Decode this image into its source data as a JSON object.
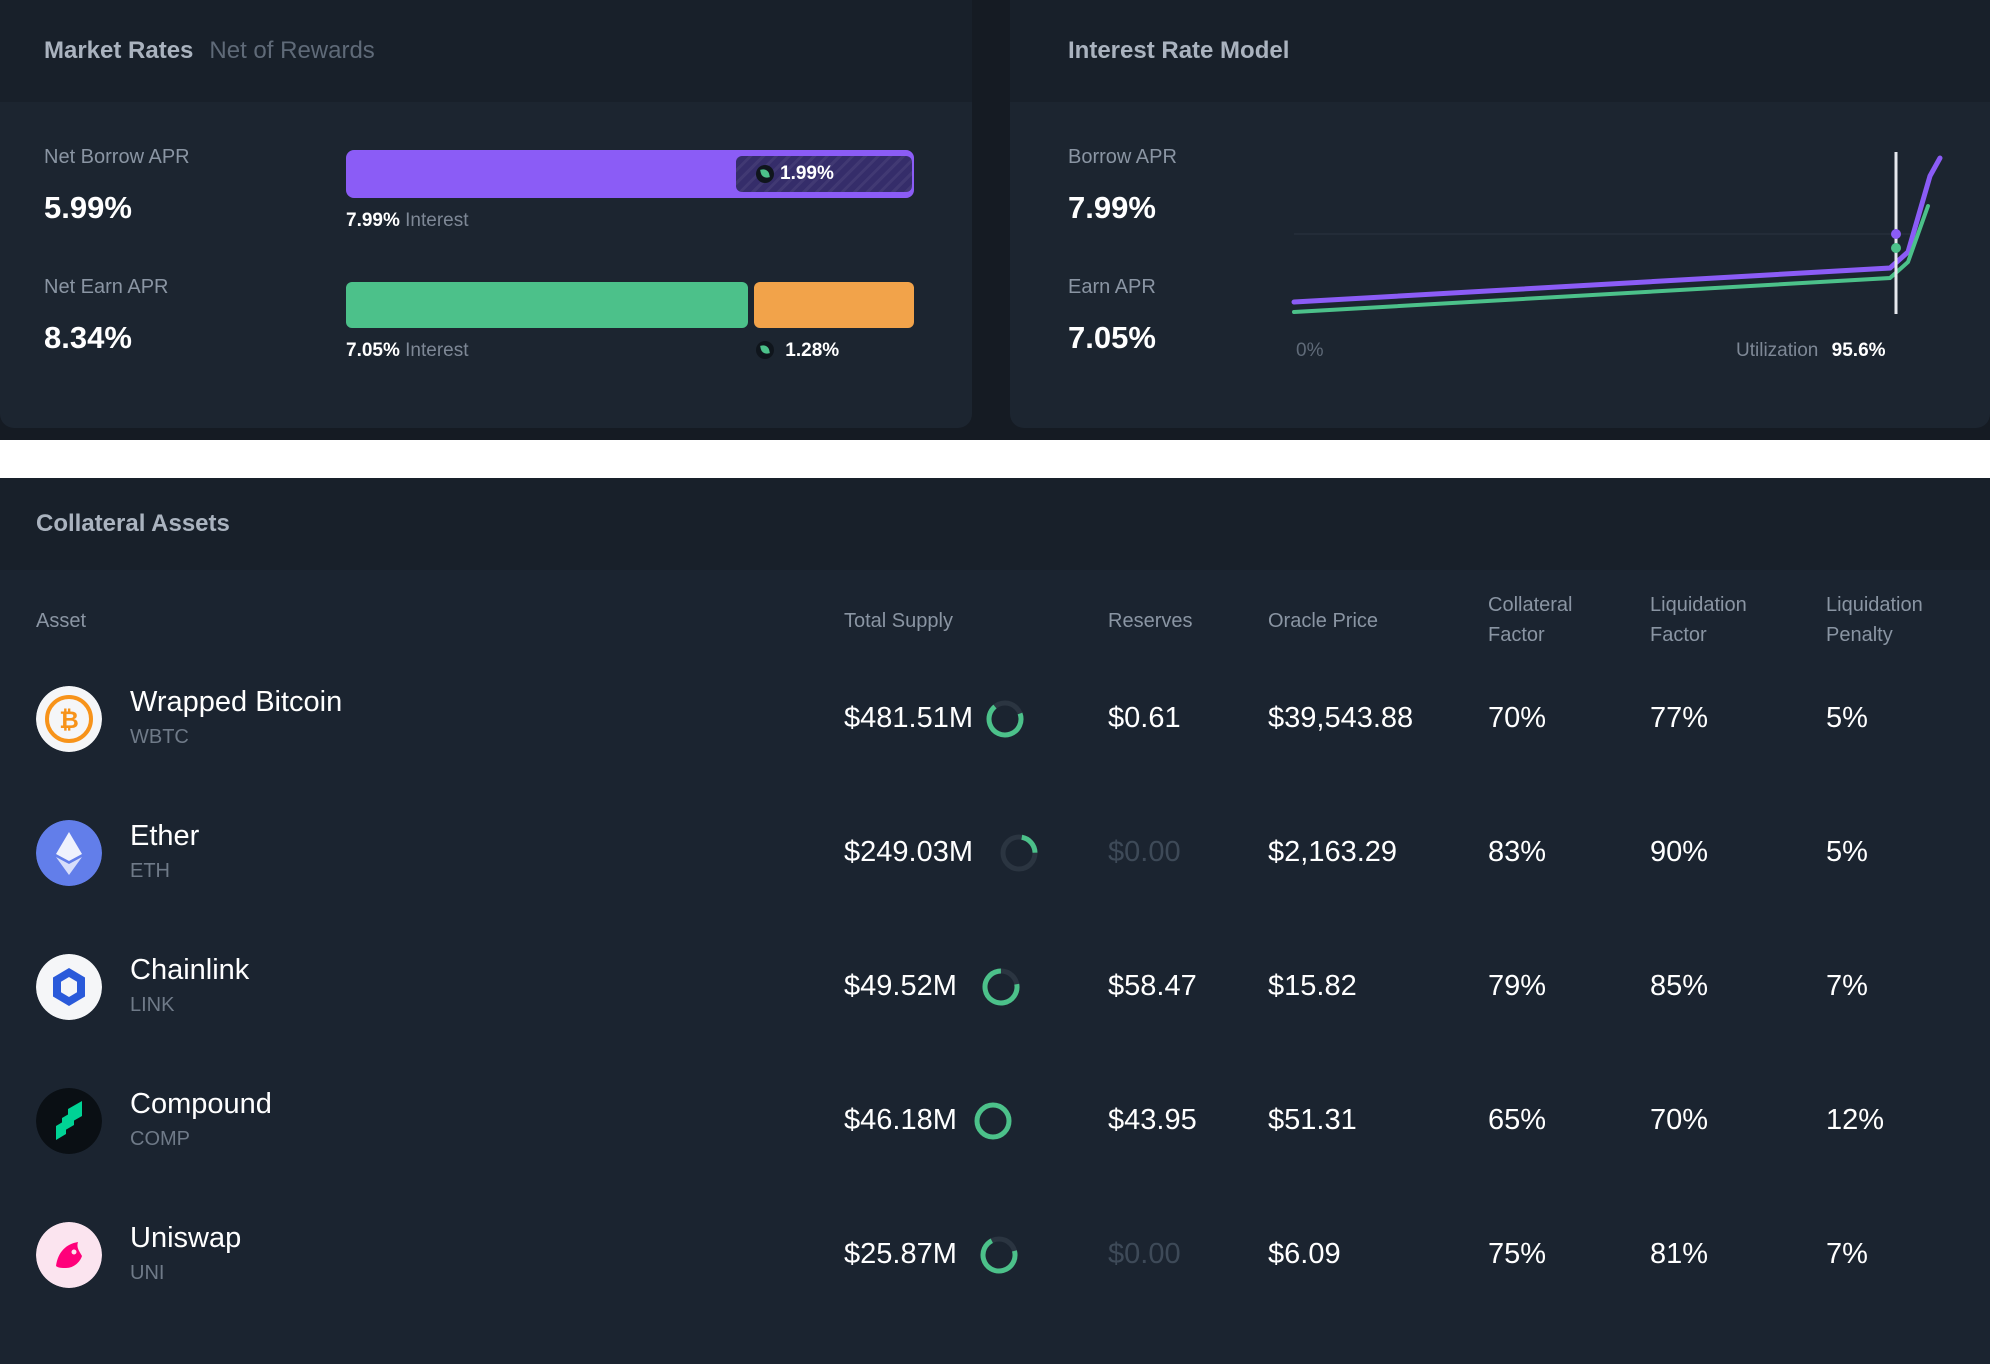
{
  "colors": {
    "purple": "#8b5cf6",
    "green": "#4cc18a",
    "orange": "#f2a34a",
    "background": "#1c2530"
  },
  "market_rates": {
    "title": "Market Rates",
    "subtitle": "Net of Rewards",
    "net_borrow": {
      "label": "Net Borrow APR",
      "value": "5.99%",
      "interest_value": "7.99%",
      "interest_label": "Interest",
      "reward": "1.99%",
      "reward_icon": "comp-leaf-icon"
    },
    "net_earn": {
      "label": "Net Earn APR",
      "value": "8.34%",
      "interest_value": "7.05%",
      "interest_label": "Interest",
      "reward": "1.28%",
      "reward_icon": "comp-leaf-icon"
    }
  },
  "interest_rate_model": {
    "title": "Interest Rate Model",
    "borrow": {
      "label": "Borrow APR",
      "value": "7.99%"
    },
    "earn": {
      "label": "Earn APR",
      "value": "7.05%"
    },
    "chart": {
      "x_start": "0%",
      "utilization_label": "Utilization",
      "utilization_value": "95.6%"
    }
  },
  "collateral": {
    "title": "Collateral Assets",
    "columns": {
      "asset": "Asset",
      "total_supply": "Total Supply",
      "reserves": "Reserves",
      "oracle_price": "Oracle Price",
      "collateral_factor": [
        "Collateral",
        "Factor"
      ],
      "liquidation_factor": [
        "Liquidation",
        "Factor"
      ],
      "liquidation_penalty": [
        "Liquidation",
        "Penalty"
      ]
    },
    "rows": [
      {
        "name": "Wrapped Bitcoin",
        "symbol": "WBTC",
        "icon": "bitcoin-icon",
        "total_supply": "$481.51M",
        "reserves": "$0.61",
        "oracle_price": "$39,543.88",
        "collateral_factor": "70%",
        "liquidation_factor": "77%",
        "liquidation_penalty": "5%"
      },
      {
        "name": "Ether",
        "symbol": "ETH",
        "icon": "ether-icon",
        "total_supply": "$249.03M",
        "reserves": "$0.00",
        "oracle_price": "$2,163.29",
        "collateral_factor": "83%",
        "liquidation_factor": "90%",
        "liquidation_penalty": "5%"
      },
      {
        "name": "Chainlink",
        "symbol": "LINK",
        "icon": "chainlink-icon",
        "total_supply": "$49.52M",
        "reserves": "$58.47",
        "oracle_price": "$15.82",
        "collateral_factor": "79%",
        "liquidation_factor": "85%",
        "liquidation_penalty": "7%"
      },
      {
        "name": "Compound",
        "symbol": "COMP",
        "icon": "compound-icon",
        "total_supply": "$46.18M",
        "reserves": "$43.95",
        "oracle_price": "$51.31",
        "collateral_factor": "65%",
        "liquidation_factor": "70%",
        "liquidation_penalty": "12%"
      },
      {
        "name": "Uniswap",
        "symbol": "UNI",
        "icon": "uniswap-icon",
        "total_supply": "$25.87M",
        "reserves": "$0.00",
        "oracle_price": "$6.09",
        "collateral_factor": "75%",
        "liquidation_factor": "81%",
        "liquidation_penalty": "7%"
      }
    ]
  }
}
